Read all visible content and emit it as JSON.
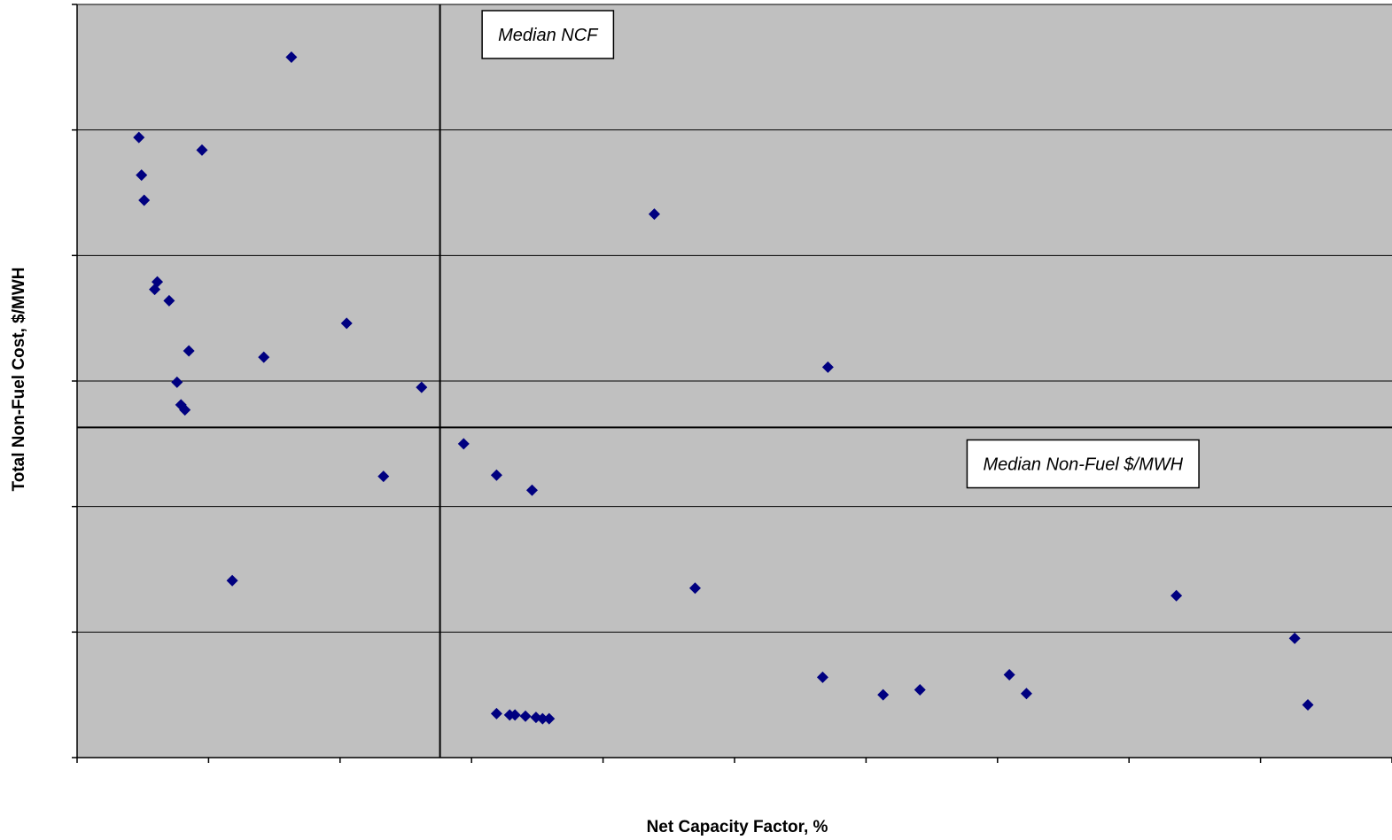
{
  "chart_data": {
    "type": "scatter",
    "title": "",
    "xlabel": "Net Capacity Factor, %",
    "ylabel": "Total Non-Fuel Cost, $/MWH",
    "xlim": [
      0,
      100
    ],
    "ylim": [
      0,
      60
    ],
    "x_ticks": [
      0,
      10,
      20,
      30,
      40,
      50,
      60,
      70,
      80,
      90,
      100
    ],
    "y_ticks": [
      0,
      10,
      20,
      30,
      40,
      50,
      60
    ],
    "tick_labels_visible": false,
    "grid": "horizontal",
    "legend": "none",
    "colors": {
      "plot_bg": "#c0c0c0",
      "marker": "#000080",
      "gridline": "#000000"
    },
    "median_lines": {
      "median_ncf_x": 27.6,
      "median_nonfuel_y": 26.3
    },
    "annotations": [
      {
        "text": "Median NCF",
        "anchor_x": 35.8,
        "anchor_y": 57.6
      },
      {
        "text": "Median Non-Fuel $/MWH",
        "anchor_x": 76.5,
        "anchor_y": 23.4
      }
    ],
    "series": [
      {
        "marker": "diamond",
        "points": [
          [
            16.3,
            55.8
          ],
          [
            4.7,
            49.4
          ],
          [
            9.5,
            48.4
          ],
          [
            4.9,
            46.4
          ],
          [
            5.1,
            44.4
          ],
          [
            43.9,
            43.3
          ],
          [
            6.1,
            37.9
          ],
          [
            5.9,
            37.3
          ],
          [
            7.0,
            36.4
          ],
          [
            20.5,
            34.6
          ],
          [
            8.5,
            32.4
          ],
          [
            14.2,
            31.9
          ],
          [
            57.1,
            31.1
          ],
          [
            7.6,
            29.9
          ],
          [
            26.2,
            29.5
          ],
          [
            7.9,
            28.1
          ],
          [
            8.2,
            27.7
          ],
          [
            29.4,
            25.0
          ],
          [
            23.3,
            22.4
          ],
          [
            31.9,
            22.5
          ],
          [
            34.6,
            21.3
          ],
          [
            11.8,
            14.1
          ],
          [
            47.0,
            13.5
          ],
          [
            83.6,
            12.9
          ],
          [
            92.6,
            9.5
          ],
          [
            56.7,
            6.4
          ],
          [
            70.9,
            6.6
          ],
          [
            64.1,
            5.4
          ],
          [
            61.3,
            5.0
          ],
          [
            72.2,
            5.1
          ],
          [
            93.6,
            4.2
          ],
          [
            31.9,
            3.5
          ],
          [
            32.9,
            3.4
          ],
          [
            33.3,
            3.4
          ],
          [
            34.1,
            3.3
          ],
          [
            34.9,
            3.2
          ],
          [
            35.4,
            3.1
          ],
          [
            35.9,
            3.1
          ]
        ]
      }
    ]
  }
}
